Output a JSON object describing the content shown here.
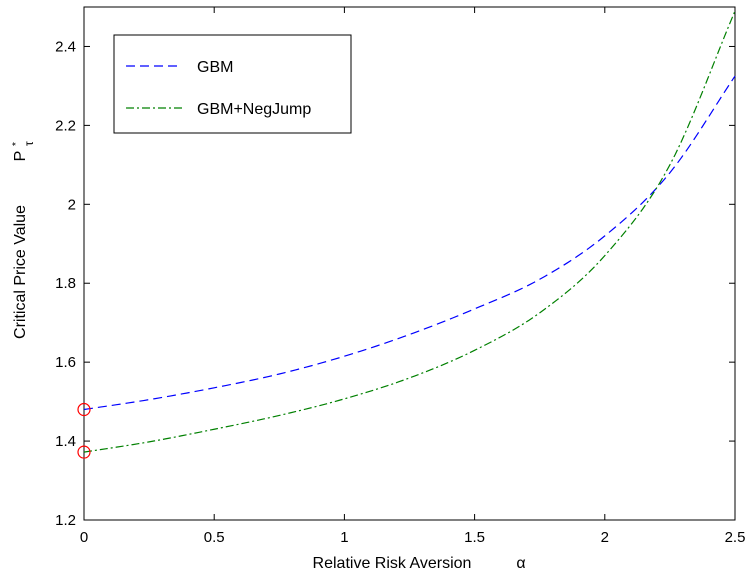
{
  "chart_data": {
    "type": "line",
    "xlabel": "Relative Risk Aversion",
    "xlabel_symbol": "α",
    "ylabel": "Critical Price Value",
    "ylabel_symbol": "P",
    "ylabel_superscript": "*",
    "ylabel_subscript": "τ",
    "xlim": [
      0,
      2.5
    ],
    "ylim": [
      1.2,
      2.5
    ],
    "xticks": [
      0,
      0.5,
      1,
      1.5,
      2,
      2.5
    ],
    "xtick_labels": [
      "0",
      "0.5",
      "1",
      "1.5",
      "2",
      "2.5"
    ],
    "yticks": [
      1.2,
      1.4,
      1.6,
      1.8,
      2.0,
      2.2,
      2.4
    ],
    "ytick_labels": [
      "1.2",
      "1.4",
      "1.6",
      "1.8",
      "2",
      "2.2",
      "2.4"
    ],
    "grid": false,
    "legend_position": "top-left",
    "series": [
      {
        "name": "GBM",
        "color": "#0000ff",
        "style": "dashed",
        "x": [
          0,
          0.25,
          0.5,
          0.75,
          1.0,
          1.25,
          1.5,
          1.75,
          2.0,
          2.25,
          2.5
        ],
        "y": [
          1.48,
          1.505,
          1.535,
          1.57,
          1.615,
          1.67,
          1.735,
          1.81,
          1.92,
          2.08,
          2.325
        ]
      },
      {
        "name": "GBM+NegJump",
        "color": "#008000",
        "style": "dash-dot",
        "x": [
          0,
          0.25,
          0.5,
          0.75,
          1.0,
          1.25,
          1.5,
          1.75,
          2.0,
          2.25,
          2.5
        ],
        "y": [
          1.372,
          1.398,
          1.43,
          1.465,
          1.507,
          1.56,
          1.63,
          1.725,
          1.87,
          2.1,
          2.49
        ]
      }
    ],
    "markers": [
      {
        "x": 0,
        "y": 1.48,
        "shape": "circle",
        "color": "#ff0000"
      },
      {
        "x": 0,
        "y": 1.372,
        "shape": "circle",
        "color": "#ff0000"
      }
    ]
  }
}
